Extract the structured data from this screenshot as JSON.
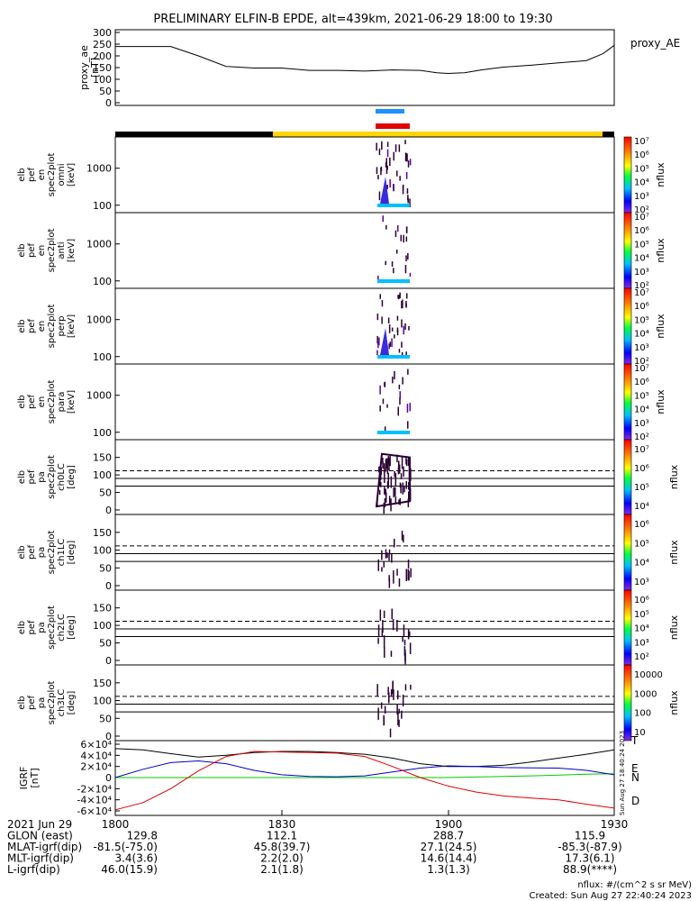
{
  "title": "PRELIMINARY ELFIN-B EPDE, alt=439km, 2021-06-29 18:00 to 19:30",
  "chart_data": [
    {
      "type": "line",
      "panel": "proxy_ae",
      "ylabel": [
        "proxy_ae",
        "[nT]"
      ],
      "legend": "proxy_AE",
      "yticks": [
        "0",
        "50",
        "100",
        "150",
        "200",
        "250",
        "300"
      ],
      "ylim": [
        0,
        300
      ],
      "x_minutes": [
        0,
        10,
        15,
        20,
        25,
        30,
        35,
        40,
        45,
        50,
        55,
        58,
        60,
        63,
        66,
        70,
        75,
        80,
        85,
        88,
        90
      ],
      "values": [
        240,
        240,
        200,
        155,
        148,
        148,
        138,
        138,
        135,
        140,
        138,
        128,
        125,
        128,
        140,
        152,
        160,
        170,
        180,
        210,
        245
      ]
    },
    {
      "type": "heatmap",
      "panel": "omni",
      "ylabel": [
        "elb",
        "pef",
        "en",
        "spec2plot",
        "omni",
        "[keV]"
      ],
      "yticks": [
        "100",
        "1000"
      ],
      "colorbar": {
        "label": "nflux",
        "ticks": [
          "10²",
          "10³",
          "10⁴",
          "10⁵",
          "10⁶",
          "10⁷"
        ]
      }
    },
    {
      "type": "heatmap",
      "panel": "anti",
      "ylabel": [
        "elb",
        "pef",
        "en",
        "spec2plot",
        "anti",
        "[keV]"
      ],
      "yticks": [
        "100",
        "1000"
      ],
      "colorbar": {
        "label": "nflux",
        "ticks": [
          "10²",
          "10³",
          "10⁴",
          "10⁵",
          "10⁶",
          "10⁷"
        ]
      }
    },
    {
      "type": "heatmap",
      "panel": "perp",
      "ylabel": [
        "elb",
        "pef",
        "en",
        "spec2plot",
        "perp",
        "[keV]"
      ],
      "yticks": [
        "100",
        "1000"
      ],
      "colorbar": {
        "label": "nflux",
        "ticks": [
          "10²",
          "10³",
          "10⁴",
          "10⁵",
          "10⁶",
          "10⁷"
        ]
      }
    },
    {
      "type": "heatmap",
      "panel": "para",
      "ylabel": [
        "elb",
        "pef",
        "en",
        "spec2plot",
        "para",
        "[keV]"
      ],
      "yticks": [
        "100",
        "1000"
      ],
      "colorbar": {
        "label": "nflux",
        "ticks": [
          "10²",
          "10³",
          "10⁴",
          "10⁵",
          "10⁶",
          "10⁷"
        ]
      }
    },
    {
      "type": "heatmap",
      "panel": "ch0LC",
      "ylabel": [
        "elb",
        "pef",
        "pa",
        "spec2plot",
        "ch0LC",
        "[deg]"
      ],
      "yticks": [
        "0",
        "50",
        "100",
        "150"
      ],
      "ylim": [
        0,
        180
      ],
      "colorbar": {
        "label": "nflux",
        "ticks": [
          "10⁴",
          "10⁵",
          "10⁶",
          "10⁷"
        ]
      }
    },
    {
      "type": "heatmap",
      "panel": "ch1LC",
      "ylabel": [
        "elb",
        "pef",
        "pa",
        "spec2plot",
        "ch1LC",
        "[deg]"
      ],
      "yticks": [
        "0",
        "50",
        "100",
        "150"
      ],
      "ylim": [
        0,
        180
      ],
      "colorbar": {
        "label": "nflux",
        "ticks": [
          "10³",
          "10⁴",
          "10⁵",
          "10⁶"
        ]
      }
    },
    {
      "type": "heatmap",
      "panel": "ch2LC",
      "ylabel": [
        "elb",
        "pef",
        "pa",
        "spec2plot",
        "ch2LC",
        "[deg]"
      ],
      "yticks": [
        "0",
        "50",
        "100",
        "150"
      ],
      "ylim": [
        0,
        180
      ],
      "colorbar": {
        "label": "nflux",
        "ticks": [
          "10²",
          "10³",
          "10⁴",
          "10⁵",
          "10⁶"
        ]
      }
    },
    {
      "type": "heatmap",
      "panel": "ch3LC",
      "ylabel": [
        "elb",
        "pef",
        "pa",
        "spec2plot",
        "ch3LC",
        "[deg]"
      ],
      "yticks": [
        "0",
        "50",
        "100",
        "150"
      ],
      "ylim": [
        0,
        180
      ],
      "colorbar": {
        "label": "nflux",
        "ticks": [
          "10",
          "100",
          "1000",
          "10000"
        ]
      }
    },
    {
      "type": "line",
      "panel": "IGRF",
      "ylabel": [
        "IGRF",
        "[nT]"
      ],
      "yticks": [
        "-6×10⁴",
        "-4×10⁴",
        "-2×10⁴",
        "0",
        "2×10⁴",
        "4×10⁴",
        "6×10⁴"
      ],
      "ylim": [
        -60000,
        60000
      ],
      "x_minutes": [
        0,
        5,
        10,
        15,
        20,
        25,
        30,
        35,
        40,
        45,
        50,
        55,
        60,
        65,
        70,
        75,
        80,
        85,
        90
      ],
      "series": [
        {
          "name": "T",
          "color": "#000000",
          "values": [
            52000,
            50000,
            43000,
            37000,
            40000,
            45000,
            47000,
            47000,
            45000,
            42000,
            35000,
            25000,
            20000,
            20000,
            22000,
            28000,
            35000,
            42000,
            50000
          ]
        },
        {
          "name": "E",
          "color": "#00cc00",
          "values": [
            0,
            0,
            0,
            0,
            0,
            0,
            0,
            0,
            0,
            0,
            0,
            0,
            0,
            1000,
            2000,
            3000,
            4500,
            6000,
            7000
          ]
        },
        {
          "name": "N",
          "color": "#0000cc",
          "values": [
            0,
            15000,
            27000,
            30000,
            25000,
            13000,
            5000,
            2000,
            1500,
            3000,
            10000,
            17000,
            21000,
            20000,
            18000,
            17500,
            17000,
            13000,
            5000
          ]
        },
        {
          "name": "D",
          "color": "#dd0000",
          "values": [
            -58000,
            -45000,
            -20000,
            12000,
            38000,
            47000,
            46000,
            45000,
            44000,
            38000,
            20000,
            0,
            -15000,
            -26000,
            -33000,
            -37000,
            -40000,
            -48000,
            -55000
          ]
        }
      ]
    }
  ],
  "bars": {
    "top_blue_label": "",
    "top_red_label": ""
  },
  "xaxis": {
    "labels": [
      "1800",
      "1830",
      "1900",
      "1930"
    ],
    "rows": [
      {
        "label": "2021 Jun 29",
        "values": [
          "",
          "",
          "",
          ""
        ]
      },
      {
        "label": "GLON (east)",
        "values": [
          "129.8",
          "112.1",
          "288.7",
          "115.9"
        ]
      },
      {
        "label": "MLAT-igrf(dip)",
        "values": [
          "-81.5(-75.0)",
          "45.8(39.7)",
          "27.1(24.5)",
          "-85.3(-87.9)"
        ]
      },
      {
        "label": "MLT-igrf(dip)",
        "values": [
          "3.4(3.6)",
          "2.2(2.0)",
          "14.6(14.4)",
          "17.3(6.1)"
        ]
      },
      {
        "label": "L-igrf(dip)",
        "values": [
          "46.0(15.9)",
          "2.1(1.8)",
          "1.3(1.3)",
          "88.9(****)"
        ]
      }
    ]
  },
  "footer": {
    "units": "nflux: #/(cm^2 s sr MeV)",
    "created": "Created: Sun Aug 27 22:40:24 2023",
    "side_stamp": "Sun Aug 27 18:40:24 2023"
  }
}
